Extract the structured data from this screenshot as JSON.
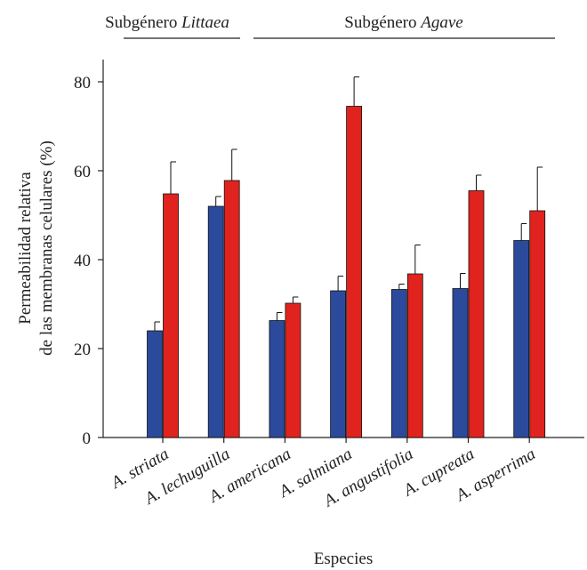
{
  "colors": {
    "series_a": "#2b4a9c",
    "series_b": "#e0231e",
    "axis": "#222222"
  },
  "groups": [
    {
      "prefix": "Subgénero ",
      "name": "Littaea"
    },
    {
      "prefix": "Subgénero ",
      "name": "Agave"
    }
  ],
  "chart_data": {
    "type": "bar",
    "categories": [
      "A. striata",
      "A. lechuguilla",
      "A. americana",
      "A. salmiana",
      "A. angustifolia",
      "A. cupreata",
      "A. asperrima"
    ],
    "series": [
      {
        "values": [
          24,
          52,
          26.3,
          33,
          33.3,
          33.5,
          44.3
        ],
        "errors": [
          2,
          2.2,
          1.8,
          3.3,
          1.2,
          3.4,
          3.8
        ]
      },
      {
        "values": [
          54.8,
          57.8,
          30.2,
          74.5,
          36.8,
          55.5,
          51
        ],
        "errors": [
          7.2,
          7,
          1.4,
          6.6,
          6.5,
          3.5,
          9.8
        ]
      }
    ],
    "xlabel": "Especies",
    "ylabel": [
      "Permeabilidad relativa",
      "de las membranas celulares (%)"
    ],
    "ylim": [
      0,
      85
    ],
    "yticks": [
      0,
      20,
      40,
      60,
      80
    ],
    "grid": false,
    "legend": "none"
  }
}
